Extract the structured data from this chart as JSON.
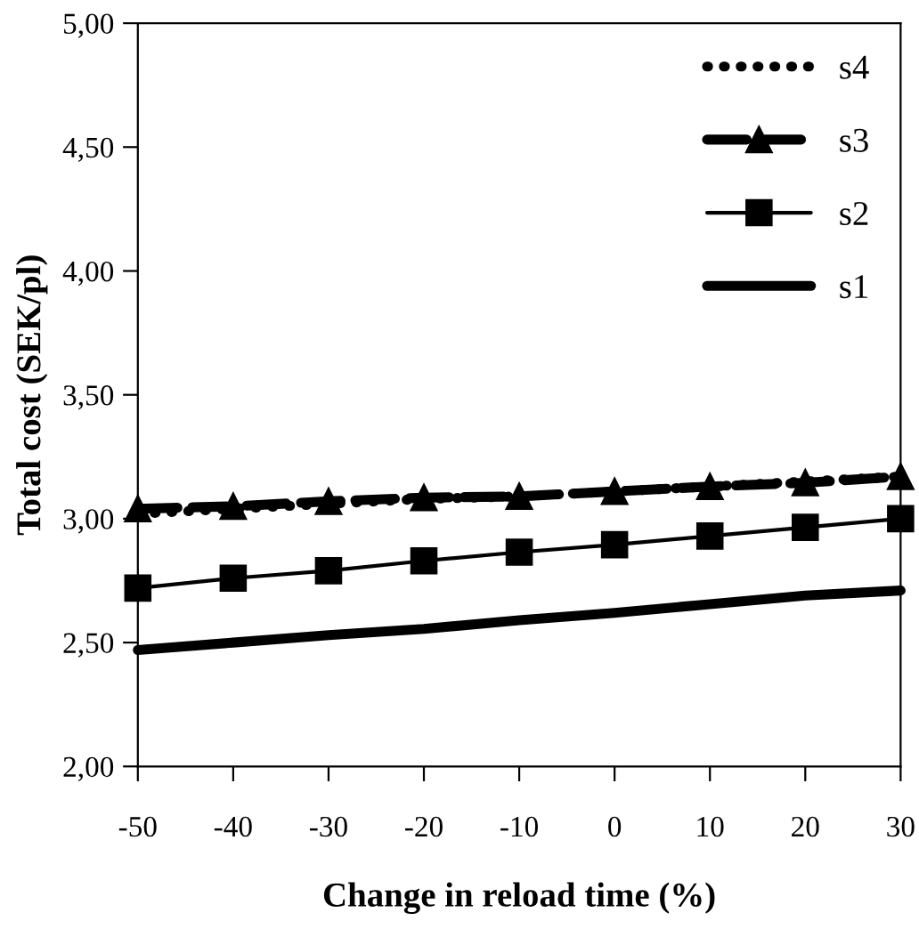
{
  "chart_data": {
    "type": "line",
    "xlabel": "Change in reload time (%)",
    "ylabel": "Total cost (SEK/pl)",
    "x": [
      -50,
      -40,
      -30,
      -20,
      -10,
      0,
      10,
      20,
      30
    ],
    "xlim": [
      -50,
      30
    ],
    "xticks": [
      -50,
      -40,
      -30,
      -20,
      -10,
      0,
      10,
      20,
      30
    ],
    "ylim": [
      2.0,
      5.0
    ],
    "yticks": [
      {
        "value": 2.0,
        "label": "2,00"
      },
      {
        "value": 2.5,
        "label": "2,50"
      },
      {
        "value": 3.0,
        "label": "3,00"
      },
      {
        "value": 3.5,
        "label": "3,50"
      },
      {
        "value": 4.0,
        "label": "4,00"
      },
      {
        "value": 4.5,
        "label": "4,50"
      },
      {
        "value": 5.0,
        "label": "5,00"
      }
    ],
    "grid": false,
    "legend": "top right",
    "series": [
      {
        "name": "s4",
        "color": "#000000",
        "line_style": "dotted",
        "marker": "none",
        "values": [
          3.02,
          3.04,
          3.06,
          3.08,
          3.09,
          3.11,
          3.13,
          3.15,
          3.17
        ]
      },
      {
        "name": "s3",
        "color": "#000000",
        "line_style": "dashed",
        "marker": "triangle",
        "values": [
          3.04,
          3.05,
          3.07,
          3.085,
          3.09,
          3.11,
          3.13,
          3.145,
          3.17
        ]
      },
      {
        "name": "s2",
        "color": "#000000",
        "line_style": "solid",
        "marker": "square",
        "values": [
          2.72,
          2.76,
          2.79,
          2.83,
          2.865,
          2.895,
          2.93,
          2.965,
          3.0
        ]
      },
      {
        "name": "s1",
        "color": "#000000",
        "line_style": "solid",
        "marker": "none",
        "values": [
          2.47,
          2.5,
          2.53,
          2.555,
          2.59,
          2.62,
          2.655,
          2.69,
          2.71
        ]
      }
    ]
  }
}
